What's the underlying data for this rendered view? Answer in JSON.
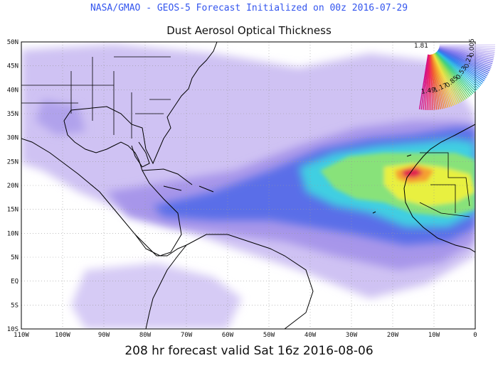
{
  "header": {
    "title": "NASA/GMAO - GEOS-5 Forecast Initialized on 00z 2016-07-29",
    "subtitle": "Dust Aerosol Optical Thickness"
  },
  "footer": {
    "valid_time": "208 hr forecast valid Sat 16z 2016-08-06"
  },
  "map": {
    "extent": {
      "lon": [
        -110,
        0
      ],
      "lat": [
        -10,
        50
      ]
    },
    "lat_ticks": [
      "50N",
      "45N",
      "40N",
      "35N",
      "30N",
      "25N",
      "20N",
      "15N",
      "10N",
      "5N",
      "EQ",
      "5S",
      "10S"
    ],
    "lon_ticks": [
      "110W",
      "100W",
      "90W",
      "80W",
      "70W",
      "60W",
      "50W",
      "40W",
      "30W",
      "20W",
      "10W",
      "0"
    ],
    "colors": {
      "ocean": "#ffffff",
      "low": "#c8b8f0",
      "light": "#a99be8",
      "mid_blue": "#5a6ee8",
      "cyan": "#3fd0e0",
      "green": "#7ee07a",
      "yellow": "#e8f040",
      "orange": "#f5a030",
      "red": "#e02050",
      "coast": "#000000"
    }
  },
  "colorbar": {
    "labels": [
      "1.81",
      "1.49",
      "1.17",
      "0.85",
      "0.53",
      "0.21",
      "0.005"
    ]
  }
}
